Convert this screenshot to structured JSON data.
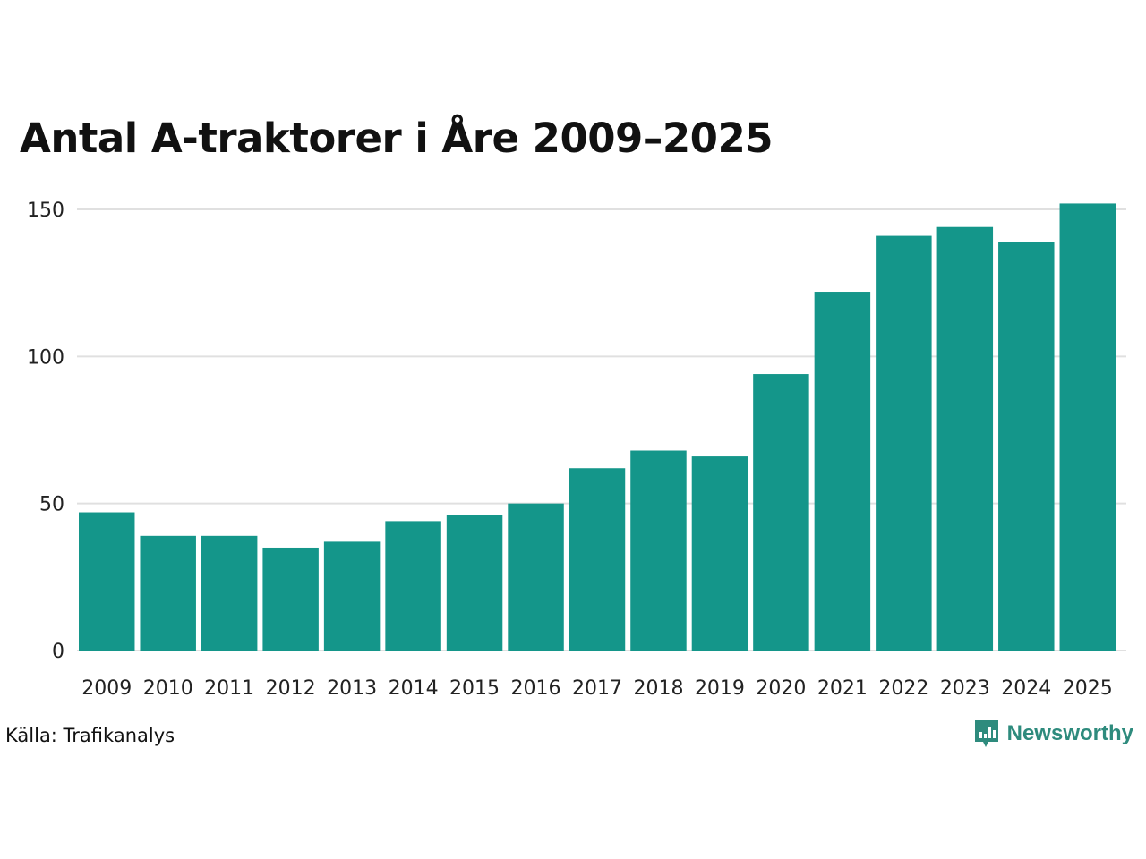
{
  "chart_data": {
    "type": "bar",
    "title": "Antal A-traktorer i Åre 2009–2025",
    "categories": [
      "2009",
      "2010",
      "2011",
      "2012",
      "2013",
      "2014",
      "2015",
      "2016",
      "2017",
      "2018",
      "2019",
      "2020",
      "2021",
      "2022",
      "2023",
      "2024",
      "2025"
    ],
    "values": [
      47,
      39,
      39,
      35,
      37,
      44,
      46,
      50,
      62,
      68,
      66,
      94,
      122,
      141,
      144,
      139,
      152
    ],
    "ylim": [
      0,
      150
    ],
    "yticks": [
      0,
      50,
      100,
      150
    ],
    "xlabel": "",
    "ylabel": "",
    "grid": true,
    "bar_color": "#14968a",
    "grid_color": "#e0e0e0"
  },
  "source": "Källa: Trafikanalys",
  "brand": {
    "name": "Newsworthy",
    "color": "#2e8b7d",
    "icon": "newsworthy-logo-icon"
  }
}
